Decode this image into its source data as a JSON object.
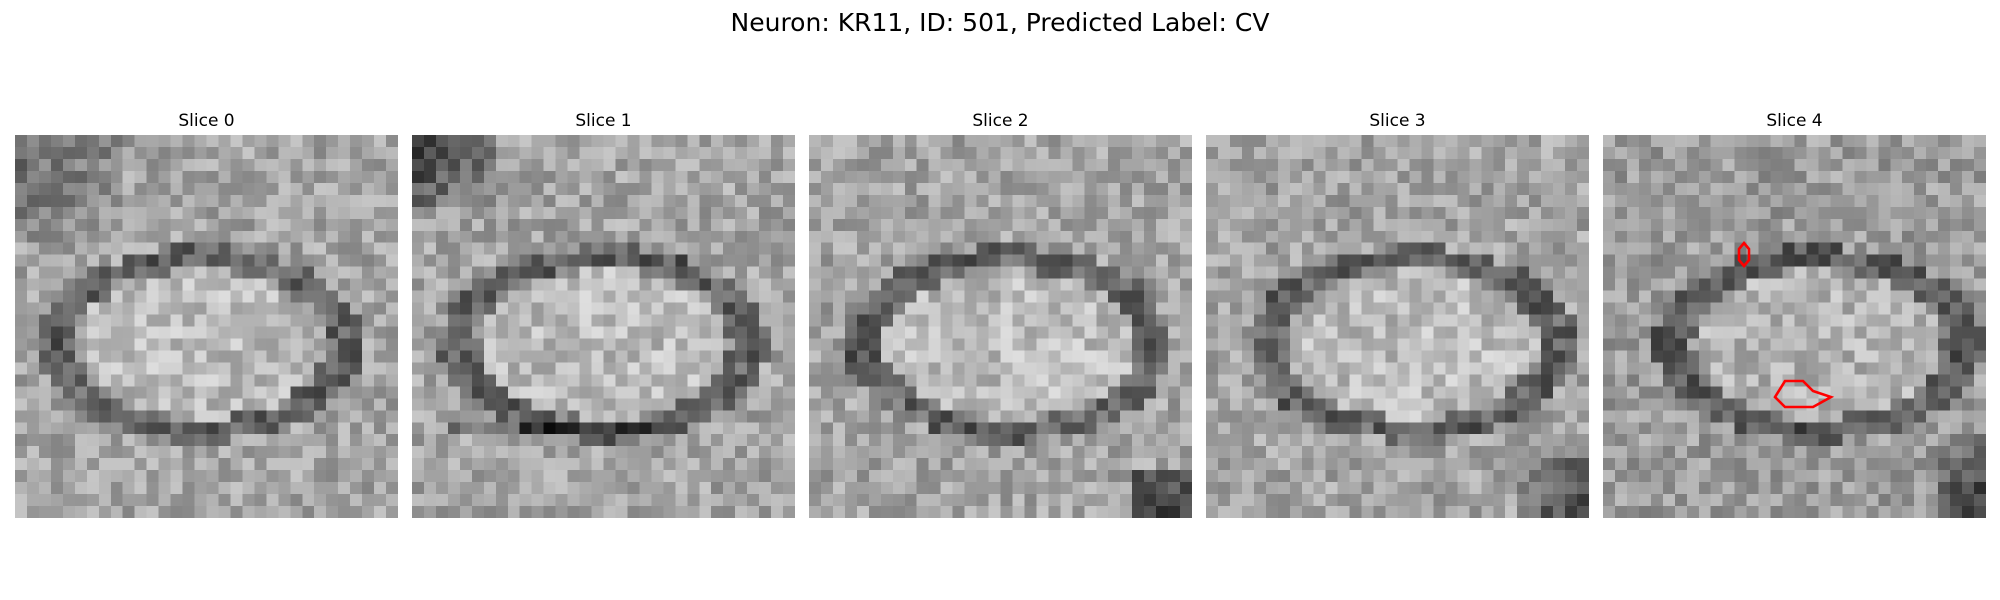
{
  "figure": {
    "title": "Neuron: KR11, ID: 501, Predicted Label: CV"
  },
  "slices": [
    {
      "title": "Slice 0",
      "has_contour": false
    },
    {
      "title": "Slice 1",
      "has_contour": false
    },
    {
      "title": "Slice 2",
      "has_contour": false
    },
    {
      "title": "Slice 3",
      "has_contour": false
    },
    {
      "title": "Slice 4",
      "has_contour": true
    }
  ],
  "colors": {
    "contour": "#ff0000",
    "colormap": "gray"
  }
}
